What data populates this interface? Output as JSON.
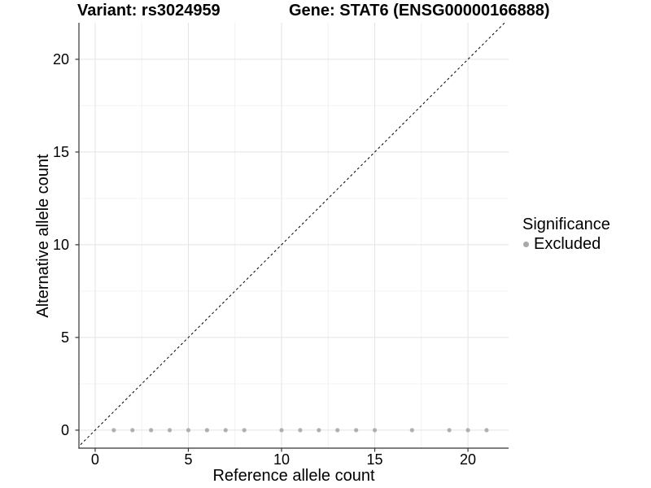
{
  "title": {
    "variant": "Variant: rs3024959",
    "gene": "Gene: STAT6 (ENSG00000166888)"
  },
  "axes": {
    "x_label": "Reference allele count",
    "y_label": "Alternative allele count"
  },
  "legend": {
    "title": "Significance",
    "items": [
      {
        "label": "Excluded",
        "color": "#a8a8a8"
      }
    ]
  },
  "colors": {
    "point": "#b0b0b0",
    "grid_major": "#e3e3e3",
    "grid_minor": "#f0f0f0",
    "axis_line": "#333333",
    "reference_line": "#000000",
    "background": "#ffffff",
    "text": "#000000"
  },
  "chart_data": {
    "type": "scatter",
    "titles": [
      "Variant: rs3024959",
      "Gene: STAT6 (ENSG00000166888)"
    ],
    "xlabel": "Reference allele count",
    "ylabel": "Alternative allele count",
    "xlim": [
      -0.87,
      22.18
    ],
    "ylim": [
      -0.97,
      21.97
    ],
    "x_major_ticks": [
      0,
      5,
      10,
      15,
      20
    ],
    "y_major_ticks": [
      0,
      5,
      10,
      15,
      20
    ],
    "x_minor_ticks": [
      2.5,
      7.5,
      12.5,
      17.5
    ],
    "y_minor_ticks": [
      2.5,
      7.5,
      12.5,
      17.5
    ],
    "grid": true,
    "legend_position": "right",
    "reference_line": {
      "kind": "identity",
      "style": "dashed",
      "color": "#000000"
    },
    "series": [
      {
        "name": "Excluded",
        "color": "#b0b0b0",
        "points": [
          [
            1,
            0
          ],
          [
            2,
            0
          ],
          [
            3,
            0
          ],
          [
            4,
            0
          ],
          [
            5,
            0
          ],
          [
            6,
            0
          ],
          [
            7,
            0
          ],
          [
            8,
            0
          ],
          [
            10,
            0
          ],
          [
            11,
            0
          ],
          [
            12,
            0
          ],
          [
            13,
            0
          ],
          [
            14,
            0
          ],
          [
            15,
            0
          ],
          [
            17,
            0
          ],
          [
            19,
            0
          ],
          [
            20,
            0
          ],
          [
            21,
            0
          ]
        ]
      }
    ]
  }
}
